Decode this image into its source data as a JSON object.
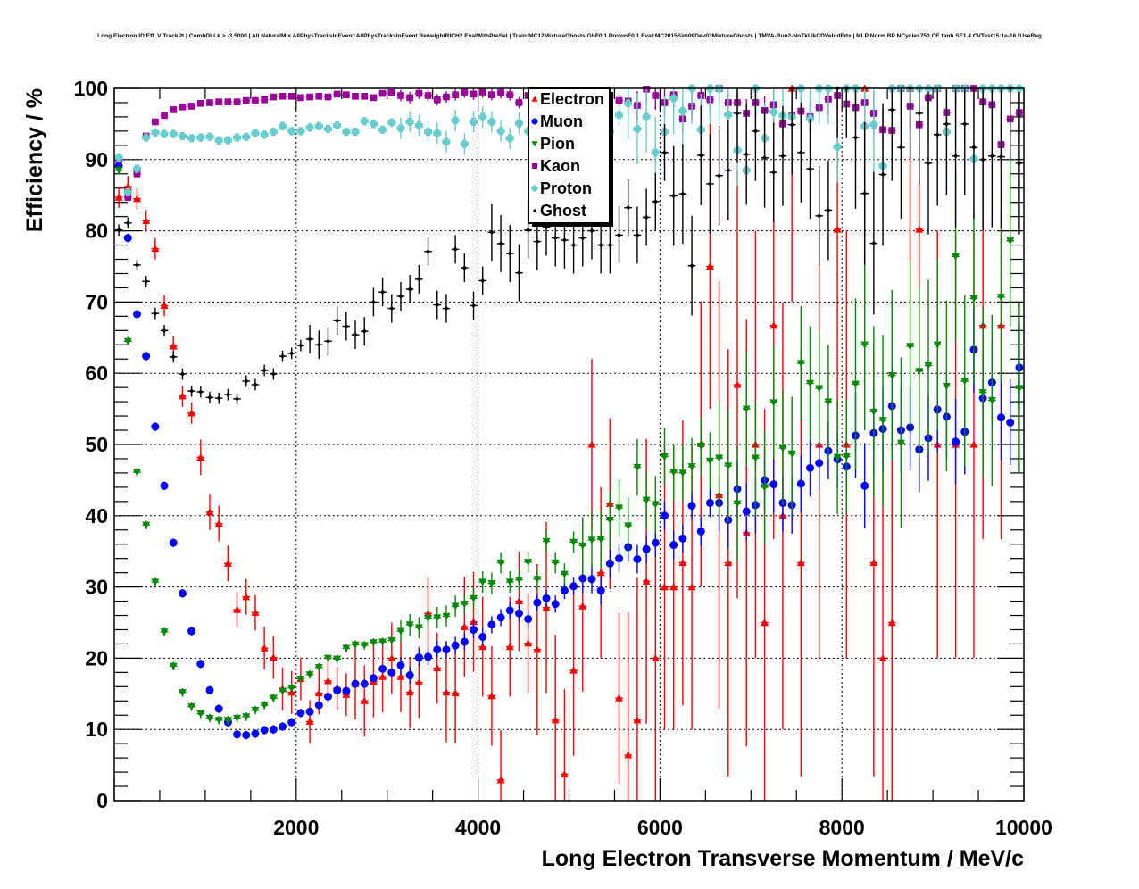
{
  "chart_data": {
    "type": "scatter",
    "title": "Long Electron ID Eff. V TrackPt | CombDLLk > -3.5000 | All NaturalMix AllPhysTracksInEvent:AllPhysTracksInEvent ReweightRICH2 EvalWithPreSel | Train:MC12MixtureGhosts GhF0.1 ProtonF0.1 Eval:MC2015Sim09Dev03MixtureGhosts | TMVA-Run2-NoTkLikCDVelodEdx | MLP Norm BP NCycles750 CE tanh SF1.4 CVTest15:1e-16 !UseReg",
    "xlabel": "Long Electron Transverse Momentum / MeV/c",
    "ylabel": "Efficiency / %",
    "xlim": [
      0,
      10000
    ],
    "ylim": [
      0,
      100
    ],
    "grid": true,
    "legend_position": "top-center",
    "x_bin_width": 100,
    "x_tick_labels": [
      "2000",
      "4000",
      "6000",
      "8000",
      "10000"
    ],
    "x_ticks": [
      2000,
      4000,
      6000,
      8000,
      10000
    ],
    "y_tick_labels": [
      "0",
      "10",
      "20",
      "30",
      "40",
      "50",
      "60",
      "70",
      "80",
      "90",
      "100"
    ],
    "y_ticks": [
      0,
      10,
      20,
      30,
      40,
      50,
      60,
      70,
      80,
      90,
      100
    ],
    "x_bin_centers_start": 50,
    "series": [
      {
        "name": "Electron",
        "marker": "triangle-up",
        "color": "#ff0000",
        "yerr_segments": [
          [
            0,
            8,
            1.5
          ],
          [
            9,
            15,
            2.5
          ],
          [
            16,
            25,
            3
          ],
          [
            26,
            35,
            5
          ],
          [
            36,
            45,
            7
          ],
          [
            46,
            55,
            12
          ],
          [
            56,
            65,
            20
          ],
          [
            66,
            99,
            30
          ]
        ],
        "values": [
          84.7,
          86.2,
          84.5,
          81.4,
          77.5,
          69.5,
          63.8,
          56.8,
          54.4,
          48.2,
          40.5,
          38.9,
          33.3,
          26.8,
          28.6,
          26.4,
          21.4,
          20.1,
          15.7,
          15.2,
          17.1,
          11.1,
          15.1,
          16.8,
          15.8,
          14.9,
          16.4,
          14,
          16.7,
          17.4,
          20,
          17.4,
          15.2,
          16.6,
          26.3,
          18.6,
          15.2,
          15.1,
          24.4,
          25.1,
          21.6,
          14.7,
          2.9,
          21.6,
          28,
          22.1,
          21.2,
          27.1,
          11.3,
          3.7,
          18.3,
          27.3,
          50,
          32,
          41.7,
          14.4,
          6.4,
          11.3,
          30.8,
          20,
          30,
          30,
          33.4,
          30,
          50.1,
          75,
          42.9,
          33.4,
          58.4,
          37.6,
          50,
          25,
          66.7,
          40,
          100,
          33.4,
          null,
          50,
          null,
          80.2,
          50,
          null,
          100,
          33.4,
          20,
          25,
          null,
          100,
          80.2,
          null,
          50,
          null,
          50,
          null,
          50,
          66.7,
          null,
          66.7,
          null,
          null
        ]
      },
      {
        "name": "Muon",
        "marker": "circle",
        "color": "#0000ff",
        "yerr_segments": [
          [
            0,
            30,
            0.6
          ],
          [
            31,
            50,
            1.2
          ],
          [
            51,
            65,
            2
          ],
          [
            66,
            80,
            4
          ],
          [
            81,
            99,
            6
          ]
        ],
        "values": [
          89.1,
          79,
          68.3,
          62.4,
          52.5,
          44.2,
          36.2,
          29.1,
          23.8,
          19.2,
          15.5,
          12.9,
          11,
          9.3,
          9.2,
          9.4,
          9.9,
          10,
          10.4,
          11,
          12.3,
          12.5,
          13.4,
          14.6,
          15.5,
          15.4,
          16.4,
          16.4,
          17.2,
          18.5,
          18,
          19,
          17.6,
          20.1,
          20.2,
          21.2,
          21.2,
          21.8,
          22.3,
          24,
          23,
          24.7,
          25.7,
          26.7,
          26.3,
          25.5,
          27.8,
          28.4,
          27.6,
          29.5,
          30.1,
          31.2,
          31.1,
          29.5,
          33.3,
          34,
          35.6,
          33.9,
          35.3,
          36.2,
          40,
          35.9,
          36.8,
          41.4,
          37.8,
          41.8,
          41.8,
          39.4,
          43.75,
          40.6,
          41.5,
          45,
          44.4,
          41.8,
          41.5,
          44.5,
          46.7,
          47.4,
          49.1,
          47.9,
          46.9,
          51.25,
          44.2,
          51.6,
          52.2,
          55.4,
          52,
          52.4,
          49.3,
          50.9,
          54.9,
          53.9,
          50.4,
          51.8,
          63.3,
          56.5,
          58.7,
          53.8,
          53.1,
          60.8
        ]
      },
      {
        "name": "Pion",
        "marker": "triangle-down",
        "color": "#008800",
        "yerr_segments": [
          [
            0,
            30,
            0.6
          ],
          [
            31,
            50,
            1.5
          ],
          [
            51,
            65,
            4
          ],
          [
            66,
            80,
            8
          ],
          [
            81,
            99,
            12
          ]
        ],
        "values": [
          88.5,
          64.5,
          46.1,
          38.7,
          30.7,
          23.7,
          18.9,
          15.2,
          13.2,
          12.2,
          11.6,
          11.3,
          11.3,
          11.6,
          11.8,
          12.7,
          13.4,
          14.4,
          15.4,
          15.8,
          17.1,
          17.7,
          18.7,
          20,
          19.9,
          21.4,
          21.9,
          21.8,
          22.2,
          22.3,
          22.5,
          23.8,
          24.7,
          24.3,
          25.6,
          25.7,
          25.9,
          27.3,
          27.6,
          28.4,
          30.7,
          30.5,
          33.4,
          30.7,
          31,
          33.5,
          31.1,
          36.4,
          33.4,
          31.8,
          36.3,
          35.8,
          36.6,
          36.7,
          39.4,
          41.1,
          38.6,
          46.8,
          42.2,
          41.6,
          48.3,
          46.1,
          46,
          46.9,
          49.8,
          47.7,
          48.1,
          47,
          41.7,
          55,
          48.1,
          44,
          55.9,
          49.5,
          48.7,
          61.4,
          58.6,
          57.9,
          56,
          48.2,
          48.3,
          58.5,
          64,
          54.6,
          53.4,
          59.7,
          50.2,
          63.8,
          60.3,
          61.1,
          64,
          58.2,
          76.4,
          58.9,
          70.5,
          57.3,
          56.2,
          70.7,
          78.6,
          57.9
        ]
      },
      {
        "name": "Kaon",
        "marker": "square",
        "color": "#990099",
        "yerr_segments": [
          [
            0,
            30,
            0.4
          ],
          [
            31,
            55,
            0.8
          ],
          [
            56,
            80,
            2
          ],
          [
            81,
            99,
            3
          ]
        ],
        "values": [
          90,
          84.7,
          88,
          93.3,
          95.3,
          96.2,
          97,
          97.4,
          97.5,
          97.9,
          98,
          98.1,
          98.1,
          98.1,
          98.3,
          98.3,
          98.4,
          98.8,
          98.9,
          98.9,
          98.7,
          98.8,
          98.9,
          98.8,
          99.2,
          99.1,
          98.9,
          98.9,
          98.7,
          99.3,
          99.4,
          99,
          98.7,
          99.3,
          99,
          98.4,
          98.8,
          99.1,
          99.5,
          99.2,
          99.5,
          99.1,
          99.4,
          99.1,
          98,
          99,
          99,
          99,
          99,
          99,
          99,
          99,
          99,
          99,
          99,
          98.3,
          98.2,
          97.6,
          99.9,
          99,
          98,
          99.1,
          95.7,
          97.5,
          99,
          98.4,
          100,
          98,
          98,
          96.5,
          98,
          96.9,
          97.7,
          95,
          96.2,
          96.8,
          96,
          97.3,
          98.5,
          99,
          97.8,
          97.3,
          98,
          96.5,
          94.2,
          94.1,
          100,
          97.5,
          94.9,
          98.7,
          100,
          96.6,
          100,
          100,
          100,
          98.1,
          97.7,
          92.1,
          95.7,
          96.6
        ]
      },
      {
        "name": "Proton",
        "marker": "cross",
        "color": "#66cccc",
        "yerr_segments": [
          [
            0,
            30,
            0.6
          ],
          [
            31,
            55,
            1.5
          ],
          [
            56,
            80,
            5
          ],
          [
            81,
            99,
            8
          ]
        ],
        "values": [
          90.3,
          85.4,
          88.7,
          93.1,
          93.8,
          93.6,
          93.6,
          93.3,
          93,
          93.1,
          93.2,
          92.7,
          92.7,
          93.1,
          93.2,
          93.7,
          93.5,
          93.9,
          94.7,
          94,
          94,
          94.5,
          94.7,
          94.3,
          94.8,
          93.9,
          93.9,
          95.4,
          95,
          94.2,
          95.2,
          94.4,
          95.3,
          94.8,
          93.9,
          93.7,
          92.5,
          95.5,
          92.2,
          95.3,
          96,
          95.3,
          94,
          93,
          95.1,
          94,
          94,
          94,
          94,
          94,
          94,
          94,
          94,
          94,
          94,
          96.25,
          97.9,
          94.3,
          96,
          91,
          93.9,
          98.6,
          96.8,
          100,
          94.2,
          100,
          100,
          96.3,
          91.3,
          88.5,
          100,
          93,
          96.7,
          96.2,
          96,
          100,
          95.75,
          100,
          100,
          91.8,
          100,
          100,
          94.7,
          94.9,
          89.1,
          100,
          100,
          100,
          100,
          100,
          100,
          93.9,
          100,
          100,
          90.1,
          100,
          100,
          100,
          100,
          100
        ]
      },
      {
        "name": "Ghost",
        "marker": "diamond",
        "color": "#000000",
        "yerr_segments": [
          [
            0,
            20,
            0.8
          ],
          [
            21,
            40,
            2
          ],
          [
            41,
            60,
            4
          ],
          [
            61,
            80,
            7
          ],
          [
            81,
            99,
            10
          ]
        ],
        "values": [
          80.1,
          81.1,
          75.2,
          72.9,
          68.4,
          66,
          62.3,
          59.9,
          57.5,
          57.4,
          56.6,
          56.5,
          57,
          56.4,
          58.9,
          58.4,
          60.4,
          59.9,
          62.4,
          62.8,
          63.9,
          64.8,
          64,
          64.5,
          67.4,
          66.6,
          65.4,
          65.9,
          70,
          71.4,
          69.1,
          70.8,
          71.8,
          73.2,
          77.1,
          69.6,
          69.1,
          77.4,
          74.8,
          69.5,
          73,
          79.8,
          78.2,
          76.8,
          74.1,
          80.1,
          78.5,
          80.5,
          79,
          78.7,
          78,
          79,
          80,
          78,
          78,
          79.4,
          83.25,
          79.4,
          81.9,
          84.1,
          91,
          84.9,
          85.2,
          75.1,
          90.6,
          86.6,
          87.75,
          88.5,
          96.5,
          90.75,
          94,
          90.25,
          88.2,
          90.5,
          94.9,
          91,
          88.7,
          82.1,
          82.9,
          100,
          100,
          93.1,
          85.25,
          78.25,
          87.9,
          97,
          91.7,
          100,
          96.5,
          89.5,
          93.5,
          95,
          90.5,
          95,
          91.7,
          90,
          90.5,
          90.4,
          100,
          89.5
        ]
      }
    ]
  }
}
